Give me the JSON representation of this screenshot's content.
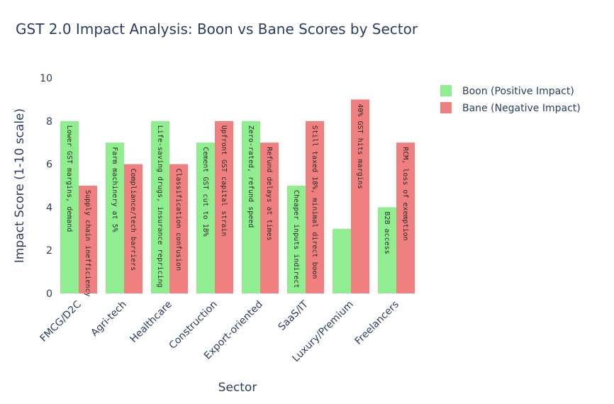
{
  "chart_data": {
    "type": "bar",
    "title": "GST 2.0 Impact Analysis: Boon vs Bane Scores by Sector",
    "xlabel": "Sector",
    "ylabel": "Impact Score (1-10 scale)",
    "ylim": [
      0,
      10
    ],
    "yticks": [
      0,
      2,
      4,
      6,
      8,
      10
    ],
    "grid": false,
    "legend_position": "top-right",
    "categories": [
      "FMCG/D2C",
      "Agri-tech",
      "Healthcare",
      "Construction",
      "Export-oriented",
      "SaaS/IT",
      "Luxury/Premium",
      "Freelancers"
    ],
    "series": [
      {
        "name": "Boon (Positive Impact)",
        "color": "#90ee90",
        "values": [
          8,
          7,
          8,
          7,
          8,
          5,
          3,
          4
        ],
        "labels": [
          "Lower GST margins, demand",
          "Farm machinery at 5%",
          "Life-saving drugs, insurance repricing",
          "Cement GST cut to 18%",
          "Zero-rated, refund speed",
          "Cheaper inputs indirect",
          "",
          "B2B access"
        ]
      },
      {
        "name": "Bane (Negative Impact)",
        "color": "#f08080",
        "values": [
          5,
          6,
          6,
          8,
          7,
          8,
          9,
          7
        ],
        "labels": [
          "Supply chain inefficiency",
          "Compliance/tech barriers",
          "Classification confusion",
          "Upfront GST capital strain",
          "Refund delays at times",
          "Still taxed 18%, minimal direct boon",
          "40% GST hits margins",
          "RCM, loss of exemption"
        ]
      }
    ]
  }
}
